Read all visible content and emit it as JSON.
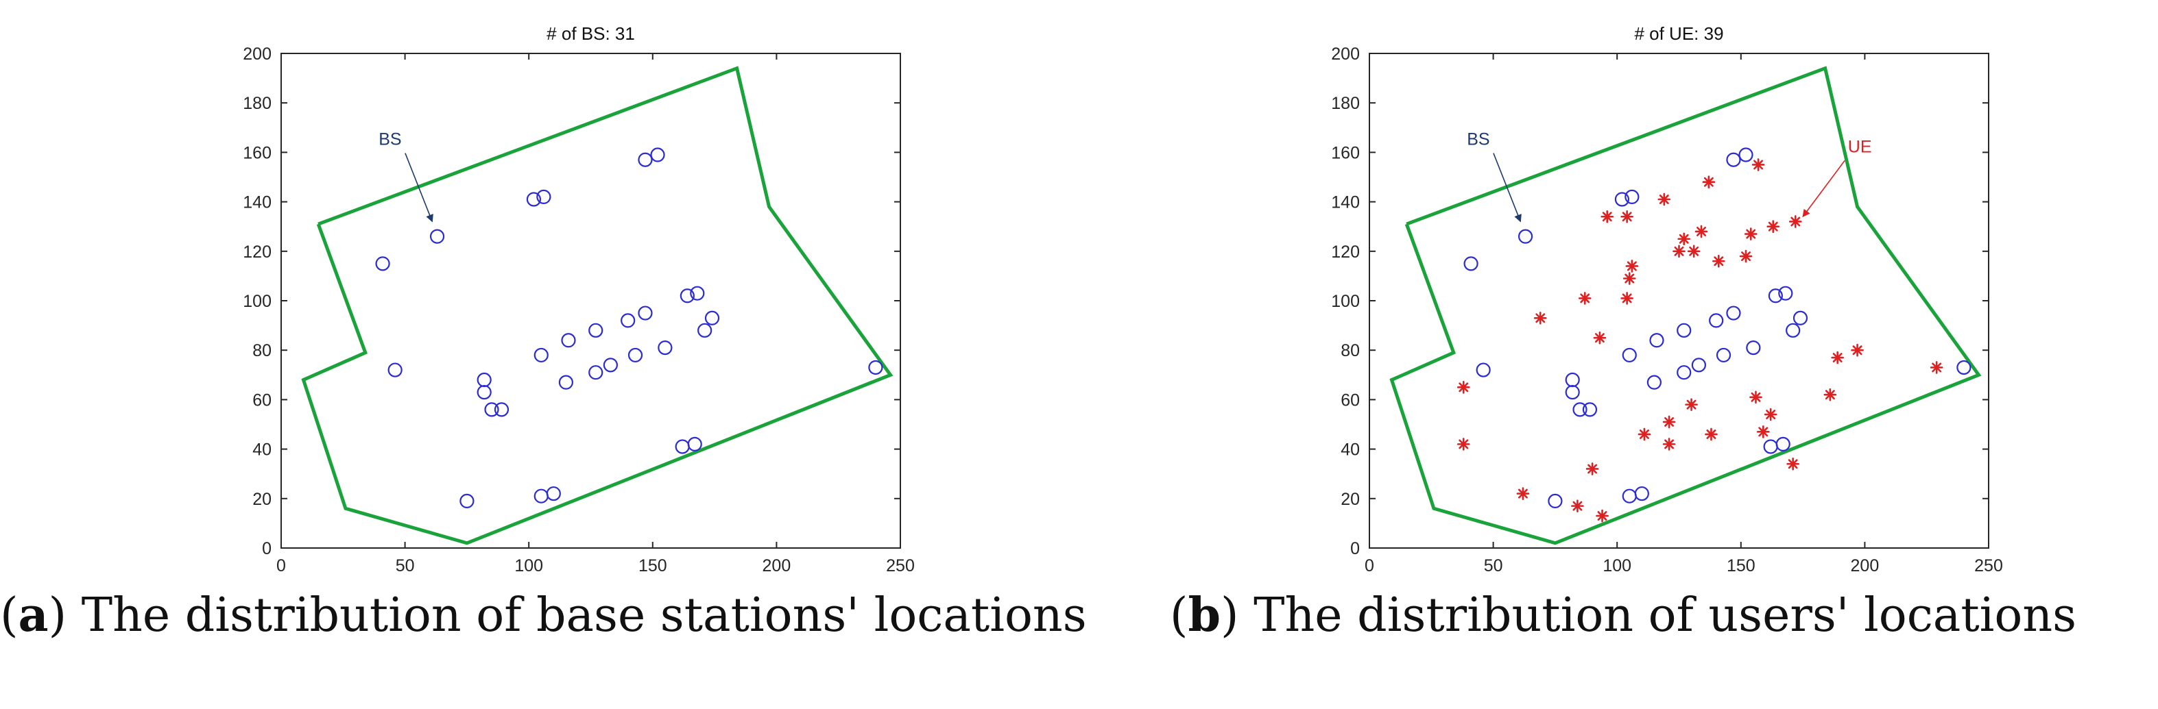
{
  "charts": [
    {
      "type": "scatter",
      "title": "# of BS: 31",
      "caption_letter": "a",
      "caption_text": "The distribution of base stations' locations",
      "xlim": [
        0,
        250
      ],
      "ylim": [
        0,
        200
      ],
      "xticks": [
        0,
        50,
        100,
        150,
        200,
        250
      ],
      "yticks": [
        0,
        20,
        40,
        60,
        80,
        100,
        120,
        140,
        160,
        180,
        200
      ],
      "boundary_color": "#1aa33a",
      "boundary": [
        [
          15,
          131
        ],
        [
          184,
          194
        ],
        [
          197,
          138
        ],
        [
          246,
          70
        ],
        [
          75,
          2
        ],
        [
          26,
          16
        ],
        [
          9,
          68
        ],
        [
          34,
          79
        ],
        [
          15,
          131
        ]
      ],
      "series": [
        {
          "marker": "circle",
          "color": "#2b2bd6",
          "points": [
            [
              41,
              115
            ],
            [
              46,
              72
            ],
            [
              63,
              126
            ],
            [
              75,
              19
            ],
            [
              82,
              68
            ],
            [
              82,
              63
            ],
            [
              85,
              56
            ],
            [
              89,
              56
            ],
            [
              102,
              141
            ],
            [
              106,
              142
            ],
            [
              105,
              78
            ],
            [
              105,
              21
            ],
            [
              110,
              22
            ],
            [
              115,
              67
            ],
            [
              116,
              84
            ],
            [
              127,
              88
            ],
            [
              127,
              71
            ],
            [
              133,
              74
            ],
            [
              140,
              92
            ],
            [
              143,
              78
            ],
            [
              147,
              95
            ],
            [
              147,
              157
            ],
            [
              152,
              159
            ],
            [
              155,
              81
            ],
            [
              162,
              41
            ],
            [
              164,
              102
            ],
            [
              167,
              42
            ],
            [
              168,
              103
            ],
            [
              171,
              88
            ],
            [
              174,
              93
            ],
            [
              240,
              73
            ]
          ]
        }
      ],
      "annotations": [
        {
          "text": "BS",
          "color": "#1f3a6e",
          "x": 44,
          "y": 163,
          "arrow_to": [
            61,
            132
          ]
        }
      ]
    },
    {
      "type": "scatter",
      "title": "# of UE: 39",
      "caption_letter": "b",
      "caption_text": "The distribution of users' locations",
      "xlim": [
        0,
        250
      ],
      "ylim": [
        0,
        200
      ],
      "xticks": [
        0,
        50,
        100,
        150,
        200,
        250
      ],
      "yticks": [
        0,
        20,
        40,
        60,
        80,
        100,
        120,
        140,
        160,
        180,
        200
      ],
      "boundary_color": "#1aa33a",
      "boundary": [
        [
          15,
          131
        ],
        [
          184,
          194
        ],
        [
          197,
          138
        ],
        [
          246,
          70
        ],
        [
          75,
          2
        ],
        [
          26,
          16
        ],
        [
          9,
          68
        ],
        [
          34,
          79
        ],
        [
          15,
          131
        ]
      ],
      "series": [
        {
          "marker": "circle",
          "color": "#2b2bd6",
          "points": [
            [
              41,
              115
            ],
            [
              46,
              72
            ],
            [
              63,
              126
            ],
            [
              75,
              19
            ],
            [
              82,
              68
            ],
            [
              82,
              63
            ],
            [
              85,
              56
            ],
            [
              89,
              56
            ],
            [
              102,
              141
            ],
            [
              106,
              142
            ],
            [
              105,
              78
            ],
            [
              105,
              21
            ],
            [
              110,
              22
            ],
            [
              115,
              67
            ],
            [
              116,
              84
            ],
            [
              127,
              88
            ],
            [
              127,
              71
            ],
            [
              133,
              74
            ],
            [
              140,
              92
            ],
            [
              143,
              78
            ],
            [
              147,
              95
            ],
            [
              147,
              157
            ],
            [
              152,
              159
            ],
            [
              155,
              81
            ],
            [
              162,
              41
            ],
            [
              164,
              102
            ],
            [
              167,
              42
            ],
            [
              168,
              103
            ],
            [
              171,
              88
            ],
            [
              174,
              93
            ],
            [
              240,
              73
            ]
          ]
        },
        {
          "marker": "asterisk",
          "color": "#e02020",
          "points": [
            [
              38,
              65
            ],
            [
              38,
              42
            ],
            [
              62,
              22
            ],
            [
              69,
              93
            ],
            [
              84,
              17
            ],
            [
              87,
              101
            ],
            [
              90,
              32
            ],
            [
              93,
              85
            ],
            [
              94,
              13
            ],
            [
              96,
              134
            ],
            [
              104,
              134
            ],
            [
              104,
              101
            ],
            [
              105,
              109
            ],
            [
              106,
              114
            ],
            [
              111,
              46
            ],
            [
              119,
              141
            ],
            [
              121,
              42
            ],
            [
              121,
              51
            ],
            [
              125,
              120
            ],
            [
              127,
              125
            ],
            [
              130,
              58
            ],
            [
              131,
              120
            ],
            [
              134,
              128
            ],
            [
              137,
              148
            ],
            [
              138,
              46
            ],
            [
              141,
              116
            ],
            [
              152,
              118
            ],
            [
              154,
              127
            ],
            [
              156,
              61
            ],
            [
              157,
              155
            ],
            [
              159,
              47
            ],
            [
              162,
              54
            ],
            [
              163,
              130
            ],
            [
              171,
              34
            ],
            [
              172,
              132
            ],
            [
              186,
              62
            ],
            [
              189,
              77
            ],
            [
              197,
              80
            ],
            [
              229,
              73
            ]
          ]
        }
      ],
      "annotations": [
        {
          "text": "BS",
          "color": "#1f3a6e",
          "x": 44,
          "y": 163,
          "arrow_to": [
            61,
            132
          ]
        },
        {
          "text": "UE",
          "color": "#e02020",
          "x": 198,
          "y": 160,
          "arrow_to": [
            175,
            134
          ]
        }
      ]
    }
  ]
}
